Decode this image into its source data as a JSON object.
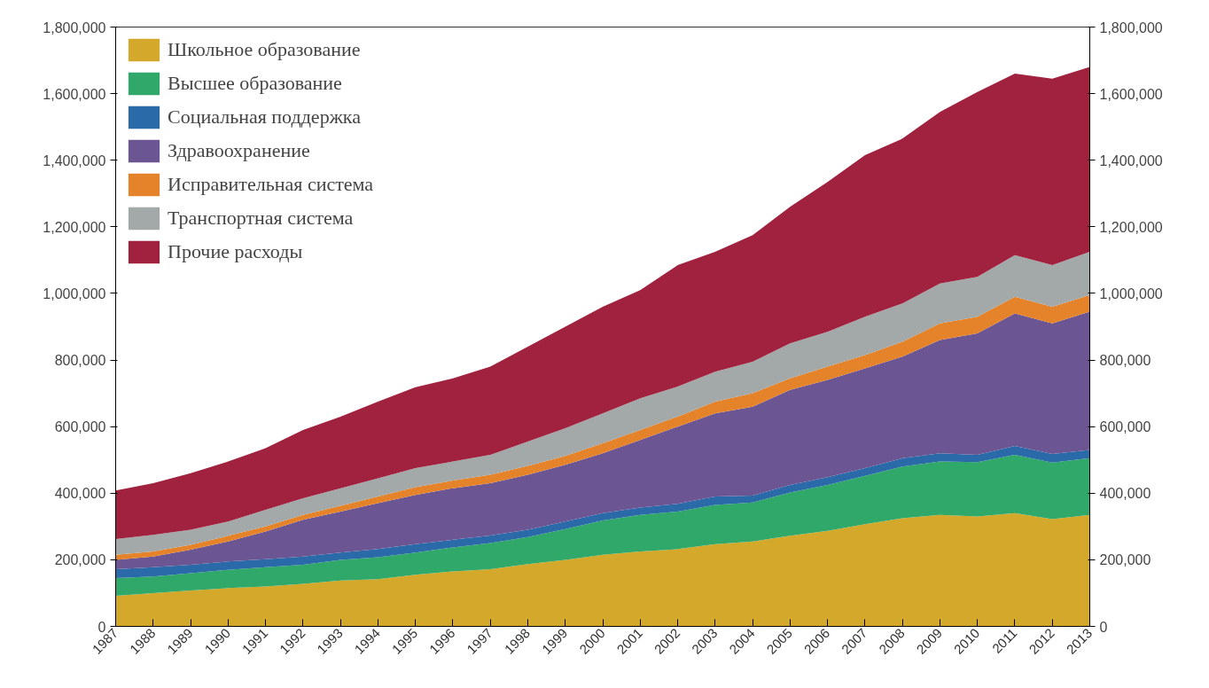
{
  "chart_data": {
    "type": "area",
    "stacked": true,
    "categories": [
      "1987",
      "1988",
      "1989",
      "1990",
      "1991",
      "1992",
      "1993",
      "1994",
      "1995",
      "1996",
      "1997",
      "1998",
      "1999",
      "2000",
      "2001",
      "2002",
      "2003",
      "2004",
      "2005",
      "2006",
      "2007",
      "2008",
      "2009",
      "2010",
      "2011",
      "2012",
      "2013"
    ],
    "series": [
      {
        "name": "Школьное образование",
        "color": "#d4a82a",
        "values": [
          92000,
          100000,
          108000,
          115000,
          120000,
          128000,
          138000,
          142000,
          155000,
          165000,
          172000,
          187000,
          200000,
          215000,
          225000,
          232000,
          247000,
          255000,
          272000,
          287000,
          307000,
          325000,
          335000,
          330000,
          340000,
          322000,
          335000
        ]
      },
      {
        "name": "Высшее образование",
        "color": "#2fa86a",
        "values": [
          53000,
          50000,
          52000,
          55000,
          58000,
          57000,
          62000,
          66000,
          67000,
          72000,
          78000,
          81000,
          92000,
          103000,
          110000,
          113000,
          118000,
          117000,
          130000,
          138000,
          145000,
          155000,
          160000,
          163000,
          175000,
          170000,
          170000
        ]
      },
      {
        "name": "Социальная поддержка",
        "color": "#2a6aa8",
        "values": [
          27000,
          28000,
          25000,
          25000,
          24000,
          25000,
          22000,
          24000,
          25000,
          23000,
          23000,
          22000,
          23000,
          22000,
          22000,
          23000,
          25000,
          21000,
          23000,
          23000,
          23000,
          25000,
          25000,
          22000,
          27000,
          26000,
          25000
        ]
      },
      {
        "name": "Здравоохранение",
        "color": "#6b5693",
        "values": [
          28000,
          32000,
          45000,
          60000,
          83000,
          110000,
          123000,
          138000,
          148000,
          155000,
          157000,
          165000,
          170000,
          180000,
          203000,
          232000,
          250000,
          267000,
          285000,
          292000,
          300000,
          305000,
          340000,
          365000,
          398000,
          392000,
          415000
        ]
      },
      {
        "name": "Исправительная система",
        "color": "#e5832a",
        "values": [
          15000,
          15000,
          15000,
          17000,
          15000,
          15000,
          17000,
          20000,
          23000,
          23000,
          25000,
          27000,
          27000,
          30000,
          30000,
          30000,
          35000,
          40000,
          35000,
          40000,
          40000,
          45000,
          50000,
          50000,
          50000,
          50000,
          50000
        ]
      },
      {
        "name": "Транспортная система",
        "color": "#a3a8a8",
        "values": [
          47000,
          50000,
          45000,
          43000,
          50000,
          50000,
          53000,
          55000,
          57000,
          57000,
          60000,
          73000,
          83000,
          90000,
          95000,
          90000,
          90000,
          95000,
          105000,
          105000,
          115000,
          115000,
          120000,
          120000,
          125000,
          125000,
          130000
        ]
      },
      {
        "name": "Прочие расходы",
        "color": "#a0223f",
        "values": [
          146000,
          155000,
          170000,
          180000,
          185000,
          205000,
          215000,
          230000,
          243000,
          250000,
          265000,
          285000,
          305000,
          320000,
          325000,
          365000,
          360000,
          380000,
          410000,
          450000,
          485000,
          495000,
          515000,
          555000,
          545000,
          560000,
          555000
        ]
      }
    ],
    "ylim": [
      0,
      1800000
    ],
    "yticks": [
      0,
      {
        "value": 200000,
        "label": "200,000"
      },
      {
        "value": 400000,
        "label": "400,000"
      },
      {
        "value": 600000,
        "label": "600,000"
      },
      {
        "value": 800000,
        "label": "800,000"
      },
      {
        "value": 1000000,
        "label": "1,000,000"
      },
      {
        "value": 1200000,
        "label": "1,200,000"
      },
      {
        "value": 1400000,
        "label": "1,400,000"
      },
      {
        "value": 1600000,
        "label": "1,600,000"
      },
      {
        "value": 1800000,
        "label": "1,800,000"
      }
    ],
    "y2lim": [
      0,
      1800000
    ],
    "y2ticks": [
      0,
      {
        "value": 200000,
        "label": "200,000"
      },
      {
        "value": 400000,
        "label": "400,000"
      },
      {
        "value": 600000,
        "label": "600,000"
      },
      {
        "value": 800000,
        "label": "800,000"
      },
      {
        "value": 1000000,
        "label": "1,000,000"
      },
      {
        "value": 1200000,
        "label": "1,200,000"
      },
      {
        "value": 1400000,
        "label": "1,400,000"
      },
      {
        "value": 1600000,
        "label": "1,600,000"
      },
      {
        "value": 1800000,
        "label": "1,800,000"
      }
    ],
    "grid": false,
    "legend": "top left"
  }
}
